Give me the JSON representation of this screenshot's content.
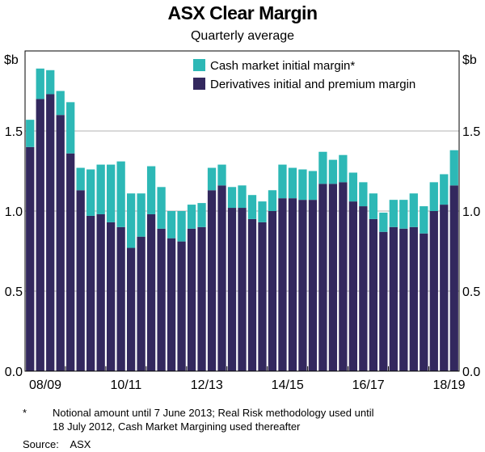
{
  "chart_data": {
    "type": "bar",
    "stacked": true,
    "title": "ASX Clear Margin",
    "subtitle": "Quarterly average",
    "ylabel_left": "$b",
    "ylabel_right": "$b",
    "ylim": [
      0,
      2.0
    ],
    "yticks": [
      0,
      0.5,
      1.0,
      1.5
    ],
    "ytick_labels": [
      "0.0",
      "0.5",
      "1.0",
      "1.5"
    ],
    "xtick_labels": [
      "08/09",
      "10/11",
      "12/13",
      "14/15",
      "16/17",
      "18/19"
    ],
    "legend_position": "top-right",
    "colors": {
      "derivatives": "#33285e",
      "cash": "#2db8b6",
      "grid": "#b3b3b3"
    },
    "series": [
      {
        "name": "Derivatives initial and premium margin",
        "key": "derivatives",
        "values": [
          1.4,
          1.7,
          1.73,
          1.6,
          1.36,
          1.13,
          0.97,
          0.98,
          0.93,
          0.9,
          0.77,
          0.84,
          0.98,
          0.89,
          0.83,
          0.81,
          0.89,
          0.9,
          1.13,
          1.16,
          1.02,
          1.02,
          0.95,
          0.93,
          1.0,
          1.08,
          1.08,
          1.07,
          1.07,
          1.17,
          1.17,
          1.18,
          1.06,
          1.03,
          0.95,
          0.87,
          0.9,
          0.89,
          0.9,
          0.86,
          1.0,
          1.04,
          1.16
        ]
      },
      {
        "name": "Cash market initial margin*",
        "key": "cash",
        "values": [
          0.17,
          0.19,
          0.15,
          0.15,
          0.32,
          0.14,
          0.29,
          0.31,
          0.36,
          0.41,
          0.34,
          0.27,
          0.3,
          0.26,
          0.17,
          0.19,
          0.15,
          0.15,
          0.14,
          0.13,
          0.13,
          0.14,
          0.15,
          0.13,
          0.13,
          0.21,
          0.19,
          0.19,
          0.18,
          0.2,
          0.15,
          0.17,
          0.18,
          0.15,
          0.16,
          0.12,
          0.17,
          0.18,
          0.21,
          0.17,
          0.18,
          0.19,
          0.22
        ]
      }
    ],
    "footnote_marker": "*",
    "footnote_lines": [
      "Notional amount until 7 June 2013; Real Risk methodology used until",
      "18 July 2012, Cash Market Margining used thereafter"
    ],
    "source_label": "Source:",
    "source_value": "ASX"
  }
}
